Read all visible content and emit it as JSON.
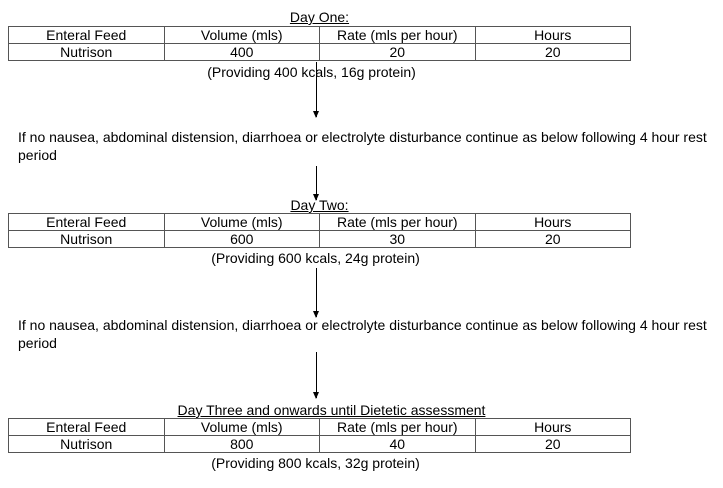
{
  "columns": [
    "Enteral Feed",
    "Volume (mls)",
    "Rate (mls per hour)",
    "Hours"
  ],
  "stages": [
    {
      "title": "Day One:",
      "row": [
        "Nutrison",
        "400",
        "20",
        "20"
      ],
      "note": "(Providing 400 kcals, 16g protein)"
    },
    {
      "title": "Day Two:",
      "row": [
        "Nutrison",
        "600",
        "30",
        "20"
      ],
      "note": "(Providing 600 kcals, 24g protein)"
    },
    {
      "title": "Day Three and onwards until Dietetic assessment",
      "row": [
        "Nutrison",
        "800",
        "40",
        "20"
      ],
      "note": "(Providing 800 kcals, 32g protein)"
    }
  ],
  "condition": "If no nausea, abdominal distension, diarrhoea or electrolyte disturbance continue as below following 4 hour rest period"
}
